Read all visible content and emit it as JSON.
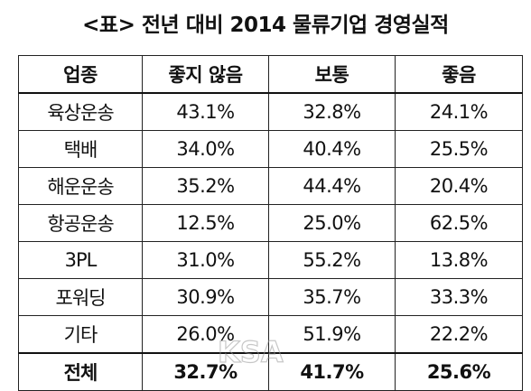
{
  "title": "<표> 전년 대비 2014 물류기업 경영실적",
  "table": {
    "headers": [
      "업종",
      "좋지 않음",
      "보통",
      "좋음"
    ],
    "rows": [
      [
        "육상운송",
        "43.1%",
        "32.8%",
        "24.1%"
      ],
      [
        "택배",
        "34.0%",
        "40.4%",
        "25.5%"
      ],
      [
        "해운운송",
        "35.2%",
        "44.4%",
        "20.4%"
      ],
      [
        "항공운송",
        "12.5%",
        "25.0%",
        "62.5%"
      ],
      [
        "3PL",
        "31.0%",
        "55.2%",
        "13.8%"
      ],
      [
        "포워딩",
        "30.9%",
        "35.7%",
        "33.3%"
      ],
      [
        "기타",
        "26.0%",
        "51.9%",
        "22.2%"
      ]
    ],
    "total": [
      "전체",
      "32.7%",
      "41.7%",
      "25.6%"
    ]
  },
  "watermark": {
    "text": "KSA"
  }
}
